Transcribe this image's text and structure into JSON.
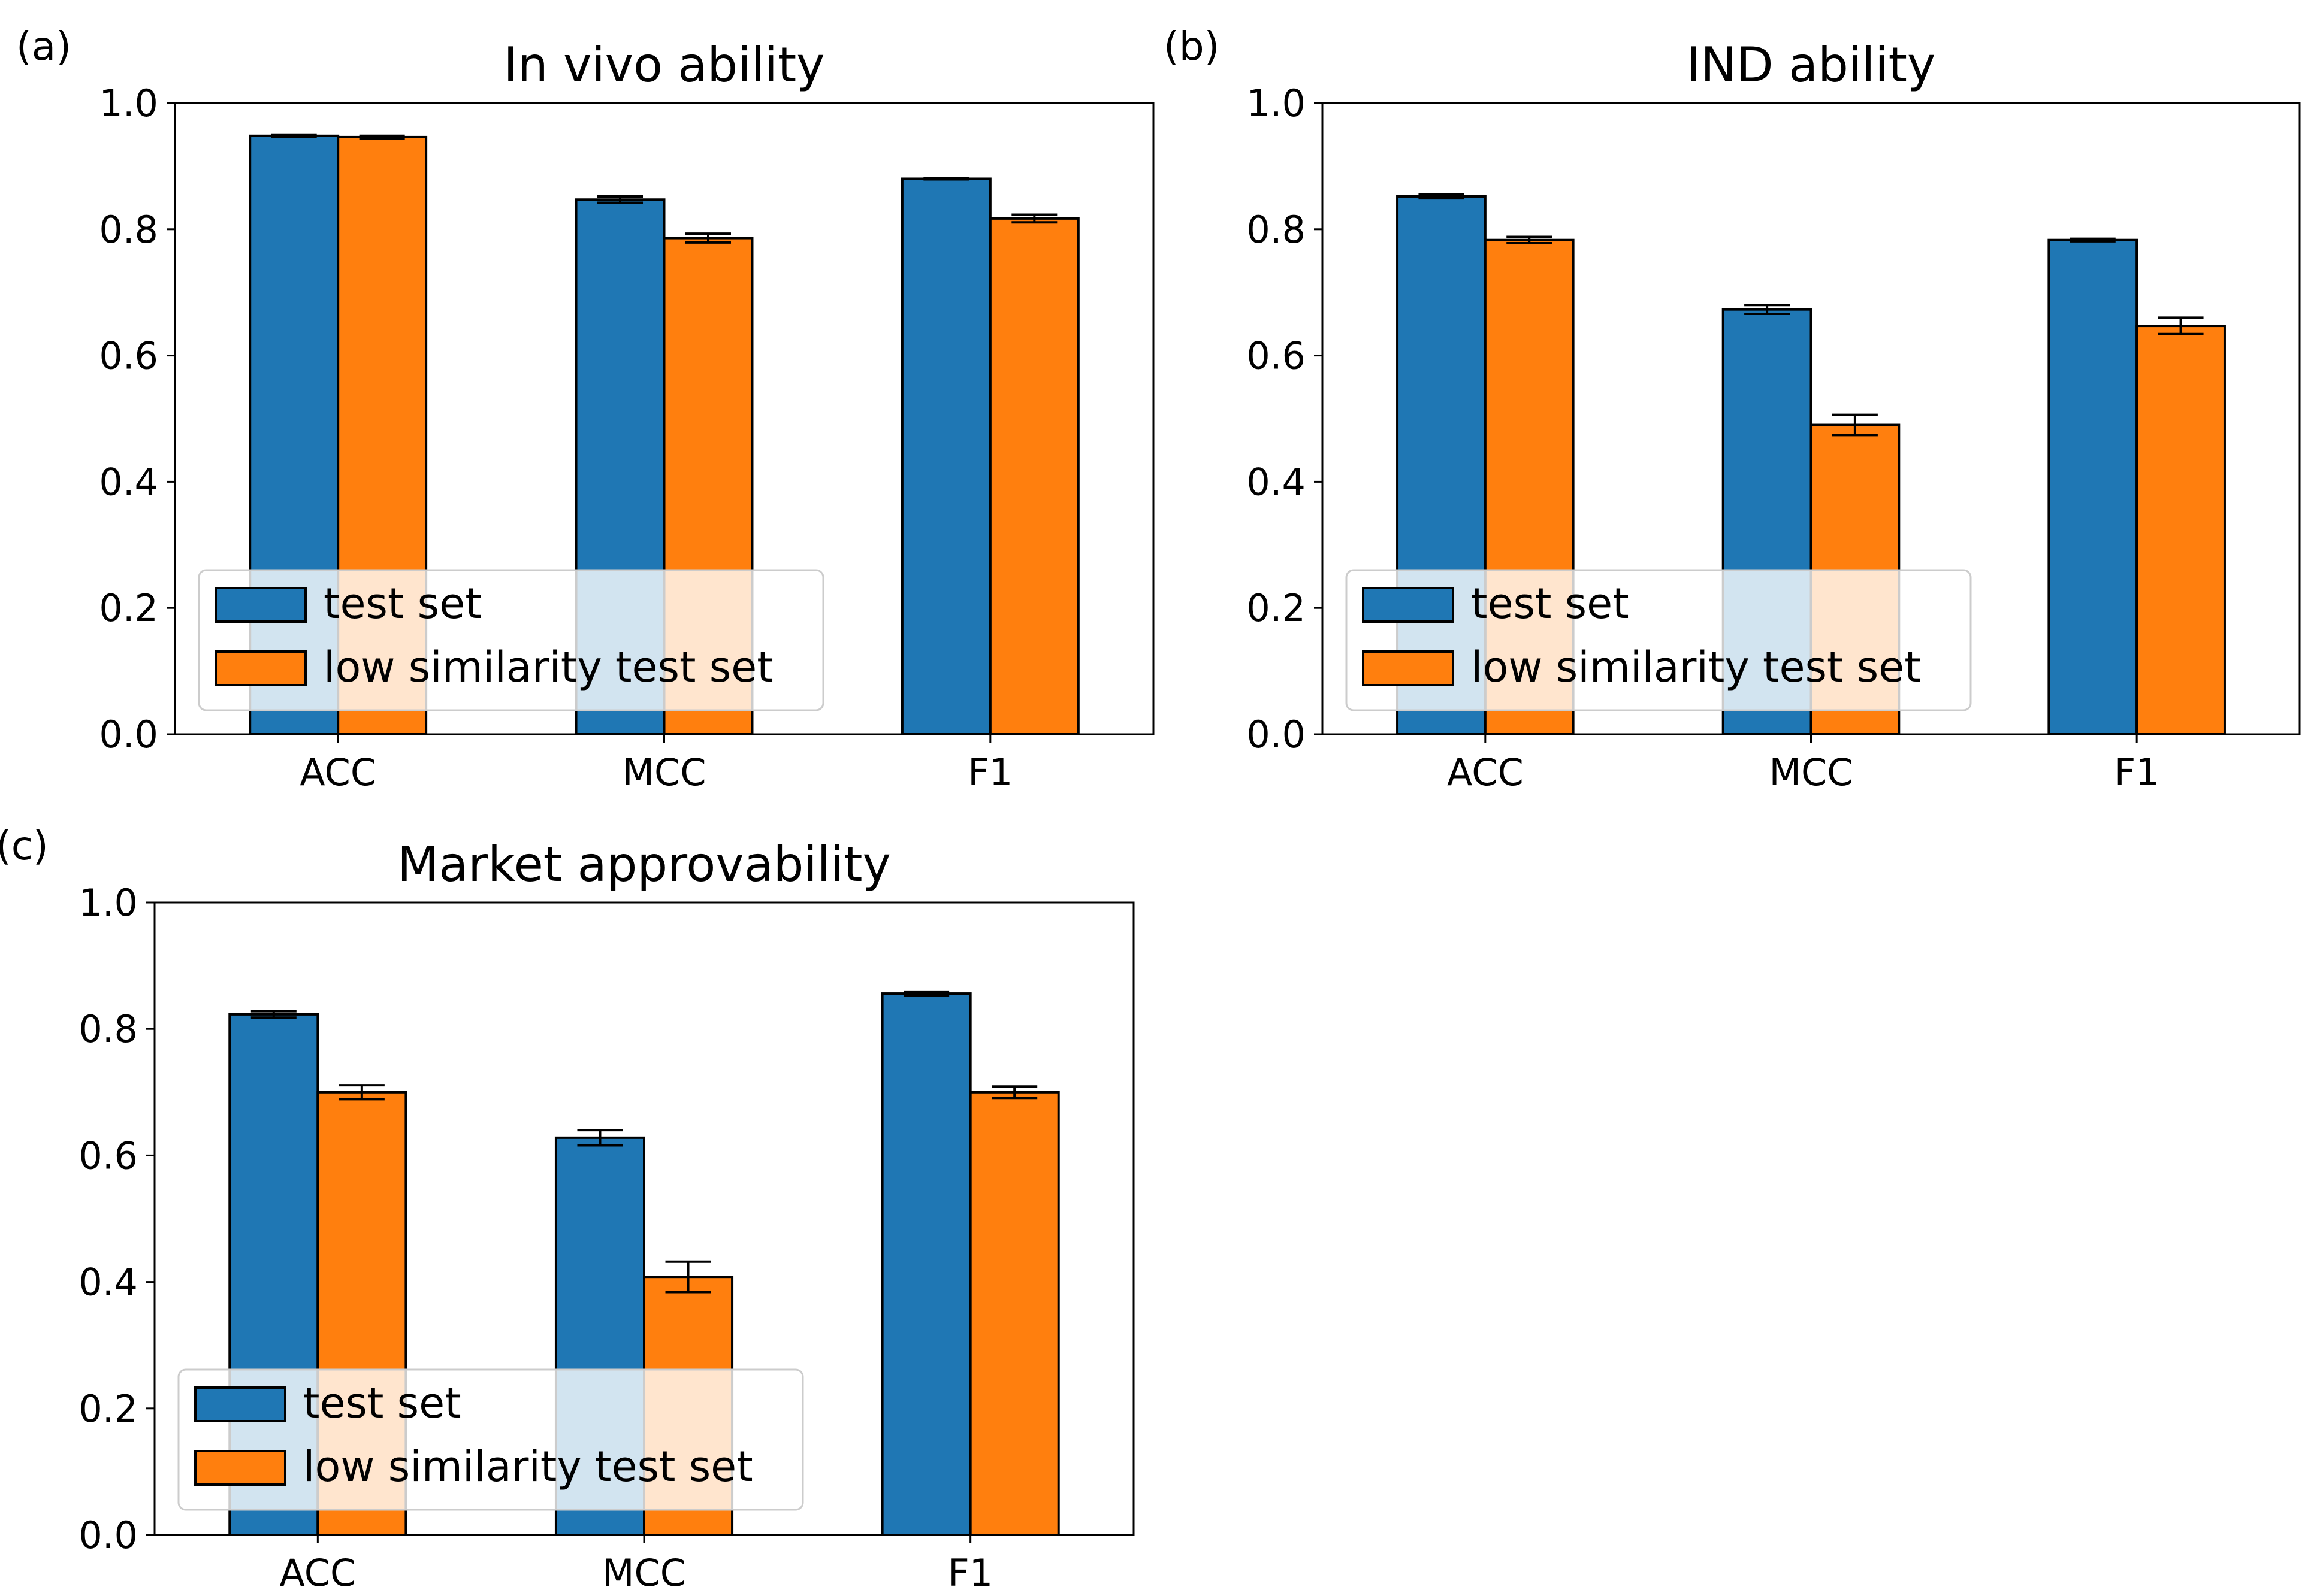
{
  "figure": {
    "colors": {
      "series_0": "#1f77b4",
      "series_1": "#ff7f0e",
      "edge": "#000000"
    }
  },
  "chart_data": [
    {
      "type": "bar",
      "panel_label": "(a)",
      "title": "In vivo ability",
      "xlabel": "",
      "ylabel": "",
      "categories": [
        "ACC",
        "MCC",
        "F1"
      ],
      "ylim": [
        0.0,
        1.0
      ],
      "yticks": [
        "0.0",
        "0.2",
        "0.4",
        "0.6",
        "0.8",
        "1.0"
      ],
      "legend_position": "lower-left",
      "series": [
        {
          "name": "test set",
          "values": [
            0.948,
            0.847,
            0.88
          ],
          "errors": [
            0.002,
            0.005,
            0.001
          ]
        },
        {
          "name": "low similarity test set",
          "values": [
            0.946,
            0.786,
            0.817
          ],
          "errors": [
            0.002,
            0.007,
            0.006
          ]
        }
      ]
    },
    {
      "type": "bar",
      "panel_label": "(b)",
      "title": "IND ability",
      "xlabel": "",
      "ylabel": "",
      "categories": [
        "ACC",
        "MCC",
        "F1"
      ],
      "ylim": [
        0.0,
        1.0
      ],
      "yticks": [
        "0.0",
        "0.2",
        "0.4",
        "0.6",
        "0.8",
        "1.0"
      ],
      "legend_position": "lower-left",
      "series": [
        {
          "name": "test set",
          "values": [
            0.852,
            0.673,
            0.783
          ],
          "errors": [
            0.003,
            0.007,
            0.002
          ]
        },
        {
          "name": "low similarity test set",
          "values": [
            0.783,
            0.49,
            0.647
          ],
          "errors": [
            0.005,
            0.016,
            0.013
          ]
        }
      ]
    },
    {
      "type": "bar",
      "panel_label": "(c)",
      "title": "Market approvability",
      "xlabel": "",
      "ylabel": "",
      "categories": [
        "ACC",
        "MCC",
        "F1"
      ],
      "ylim": [
        0.0,
        1.0
      ],
      "yticks": [
        "0.0",
        "0.2",
        "0.4",
        "0.6",
        "0.8",
        "1.0"
      ],
      "legend_position": "lower-left",
      "series": [
        {
          "name": "test set",
          "values": [
            0.823,
            0.628,
            0.856
          ],
          "errors": [
            0.005,
            0.012,
            0.003
          ]
        },
        {
          "name": "low similarity test set",
          "values": [
            0.7,
            0.408,
            0.7
          ],
          "errors": [
            0.011,
            0.024,
            0.009
          ]
        }
      ]
    }
  ]
}
